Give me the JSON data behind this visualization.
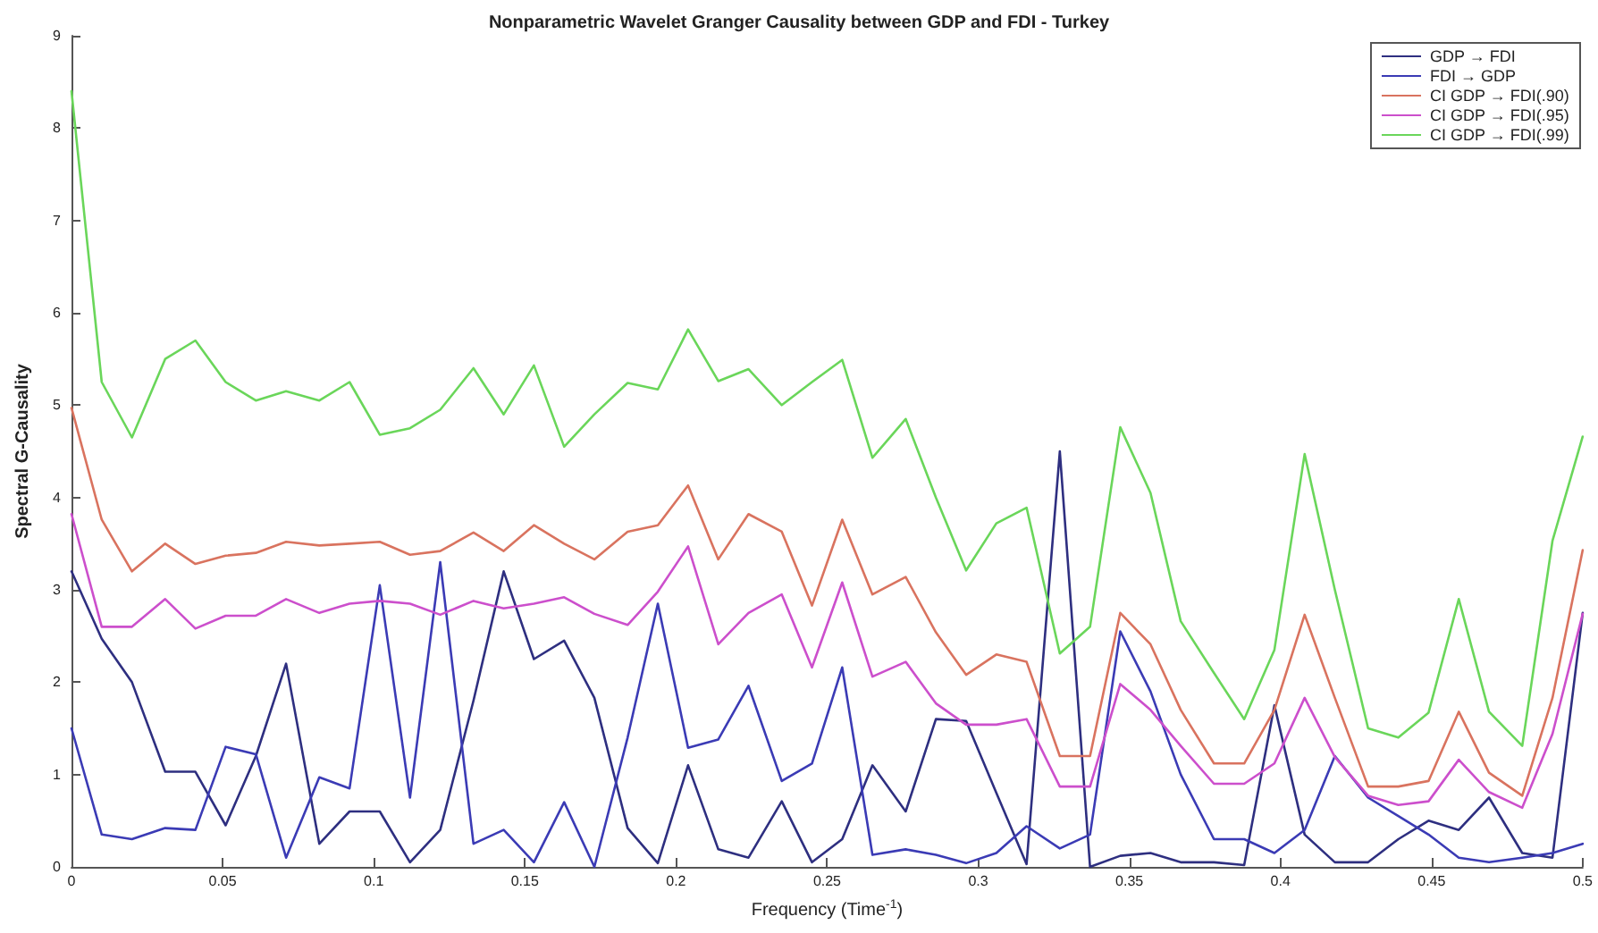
{
  "chart_data": {
    "type": "line",
    "title": "Nonparametric Wavelet Granger Causality between GDP and FDI - Turkey",
    "xlabel": "Frequency (Time$^{-1}$)",
    "ylabel": "Spectral G-Causality",
    "x": [
      0,
      0.01,
      0.02,
      0.031,
      0.041,
      0.051,
      0.061,
      0.071,
      0.082,
      0.092,
      0.102,
      0.112,
      0.122,
      0.133,
      0.143,
      0.153,
      0.163,
      0.173,
      0.184,
      0.194,
      0.204,
      0.214,
      0.224,
      0.235,
      0.245,
      0.255,
      0.265,
      0.276,
      0.286,
      0.296,
      0.306,
      0.316,
      0.327,
      0.337,
      0.347,
      0.357,
      0.367,
      0.378,
      0.388,
      0.398,
      0.408,
      0.418,
      0.429,
      0.439,
      0.449,
      0.459,
      0.469,
      0.48,
      0.49,
      0.5
    ],
    "series": [
      {
        "name": "GDP → FDI",
        "color": "#2e2f80",
        "values": [
          3.2,
          2.47,
          2.0,
          1.03,
          1.03,
          0.45,
          1.2,
          2.2,
          0.25,
          0.6,
          0.6,
          0.05,
          0.4,
          1.8,
          3.2,
          2.25,
          2.45,
          1.83,
          0.42,
          0.04,
          1.1,
          0.19,
          0.1,
          0.71,
          0.05,
          0.3,
          1.1,
          0.6,
          1.6,
          1.58,
          0.8,
          0.03,
          4.5,
          0.0,
          0.12,
          0.15,
          0.05,
          0.05,
          0.02,
          1.75,
          0.35,
          0.05,
          0.05,
          0.3,
          0.5,
          0.4,
          0.75,
          0.15,
          0.1,
          2.75
        ]
      },
      {
        "name": "FDI → GDP",
        "color": "#3b3bb5",
        "values": [
          1.5,
          0.35,
          0.3,
          0.42,
          0.4,
          1.3,
          1.22,
          0.1,
          0.97,
          0.85,
          3.05,
          0.75,
          3.3,
          0.25,
          0.4,
          0.05,
          0.7,
          0.0,
          1.4,
          2.85,
          1.29,
          1.38,
          1.96,
          0.93,
          1.12,
          2.16,
          0.13,
          0.19,
          0.13,
          0.04,
          0.15,
          0.44,
          0.2,
          0.35,
          2.55,
          1.9,
          1.0,
          0.3,
          0.3,
          0.15,
          0.4,
          1.2,
          0.75,
          0.55,
          0.35,
          0.1,
          0.05,
          0.1,
          0.15,
          0.25
        ]
      },
      {
        "name": "CI GDP → FDI(.90)",
        "color": "#d9735f",
        "values": [
          4.97,
          3.76,
          3.2,
          3.5,
          3.28,
          3.37,
          3.4,
          3.52,
          3.48,
          3.5,
          3.52,
          3.38,
          3.42,
          3.62,
          3.42,
          3.7,
          3.5,
          3.33,
          3.63,
          3.7,
          4.13,
          3.33,
          3.82,
          3.63,
          2.83,
          3.76,
          2.95,
          3.14,
          2.54,
          2.08,
          2.3,
          2.22,
          1.2,
          1.2,
          2.75,
          2.41,
          1.7,
          1.12,
          1.12,
          1.7,
          2.73,
          1.83,
          0.87,
          0.87,
          0.93,
          1.68,
          1.02,
          0.77,
          1.83,
          3.43
        ]
      },
      {
        "name": "CI GDP → FDI(.95)",
        "color": "#cc4fcc",
        "values": [
          3.82,
          2.6,
          2.6,
          2.9,
          2.58,
          2.72,
          2.72,
          2.9,
          2.75,
          2.85,
          2.88,
          2.85,
          2.73,
          2.88,
          2.8,
          2.85,
          2.92,
          2.74,
          2.62,
          2.98,
          3.47,
          2.41,
          2.75,
          2.95,
          2.16,
          3.08,
          2.06,
          2.22,
          1.77,
          1.54,
          1.54,
          1.6,
          0.87,
          0.87,
          1.98,
          1.7,
          1.31,
          0.9,
          0.9,
          1.12,
          1.83,
          1.19,
          0.77,
          0.67,
          0.71,
          1.16,
          0.81,
          0.64,
          1.44,
          2.74
        ]
      },
      {
        "name": "CI GDP → FDI(.99)",
        "color": "#6ad65a",
        "values": [
          8.4,
          5.25,
          4.65,
          5.5,
          5.7,
          5.25,
          5.05,
          5.15,
          5.05,
          5.25,
          4.68,
          4.75,
          4.95,
          5.4,
          4.9,
          5.43,
          4.55,
          4.9,
          5.24,
          5.17,
          5.82,
          5.26,
          5.39,
          5.0,
          5.25,
          5.49,
          4.43,
          4.85,
          4.0,
          3.21,
          3.72,
          3.89,
          2.31,
          2.6,
          4.76,
          4.05,
          2.66,
          2.1,
          1.6,
          2.35,
          4.47,
          3.0,
          1.5,
          1.4,
          1.67,
          2.9,
          1.68,
          1.31,
          3.53,
          4.66
        ]
      }
    ],
    "xlim": [
      0,
      0.5
    ],
    "xticks": [
      0,
      0.05,
      0.1,
      0.15,
      0.2,
      0.25,
      0.3,
      0.35,
      0.4,
      0.45,
      0.5
    ],
    "ylim": [
      0,
      9
    ],
    "yticks": [
      0,
      1,
      2,
      3,
      4,
      5,
      6,
      7,
      8,
      9
    ],
    "grid": false,
    "legend": "top right",
    "marker": "none",
    "line_style": "solid"
  }
}
